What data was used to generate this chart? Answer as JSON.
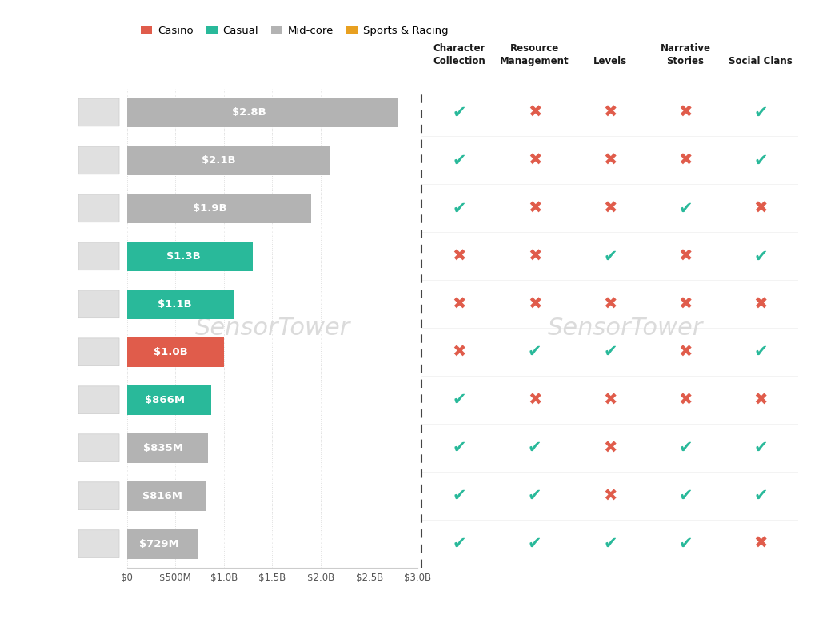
{
  "bars": [
    {
      "value": 2800,
      "color": "#b3b3b3",
      "text": "$2.8B"
    },
    {
      "value": 2100,
      "color": "#b3b3b3",
      "text": "$2.1B"
    },
    {
      "value": 1900,
      "color": "#b3b3b3",
      "text": "$1.9B"
    },
    {
      "value": 1300,
      "color": "#29b99a",
      "text": "$1.3B"
    },
    {
      "value": 1100,
      "color": "#29b99a",
      "text": "$1.1B"
    },
    {
      "value": 1000,
      "color": "#e05c4b",
      "text": "$1.0B"
    },
    {
      "value": 866,
      "color": "#29b99a",
      "text": "$866M"
    },
    {
      "value": 835,
      "color": "#b3b3b3",
      "text": "$835M"
    },
    {
      "value": 816,
      "color": "#b3b3b3",
      "text": "$816M"
    },
    {
      "value": 729,
      "color": "#b3b3b3",
      "text": "$729M"
    }
  ],
  "xlim_max": 3000,
  "xticks": [
    0,
    500,
    1000,
    1500,
    2000,
    2500,
    3000
  ],
  "xtick_labels": [
    "$0",
    "$500M",
    "$1.0B",
    "$1.5B",
    "$2.0B",
    "$2.5B",
    "$3.0B"
  ],
  "legend": [
    {
      "label": "Casino",
      "color": "#e05c4b"
    },
    {
      "label": "Casual",
      "color": "#29b99a"
    },
    {
      "label": "Mid-core",
      "color": "#b3b3b3"
    },
    {
      "label": "Sports & Racing",
      "color": "#e8a020"
    }
  ],
  "col_headers": [
    "Character\nCollection",
    "Resource\nManagement",
    "Levels",
    "Narrative\nStories",
    "Social Clans"
  ],
  "matrix": [
    [
      1,
      0,
      0,
      0,
      1
    ],
    [
      1,
      0,
      0,
      0,
      1
    ],
    [
      1,
      0,
      0,
      1,
      0
    ],
    [
      0,
      0,
      1,
      0,
      1
    ],
    [
      0,
      0,
      0,
      0,
      0
    ],
    [
      0,
      1,
      1,
      0,
      1
    ],
    [
      1,
      0,
      0,
      0,
      0
    ],
    [
      1,
      1,
      0,
      1,
      1
    ],
    [
      1,
      1,
      0,
      1,
      1
    ],
    [
      1,
      1,
      1,
      1,
      0
    ]
  ],
  "check_color": "#29b99a",
  "cross_color": "#e05c4b",
  "bg_color": "#ffffff",
  "grid_color": "#dddddd",
  "dash_color": "#444444",
  "watermark": "SensorTower",
  "watermark_color": "#d8d8d8",
  "bar_text_color_light": "#555555",
  "bar_text_color_dark": "#ffffff"
}
